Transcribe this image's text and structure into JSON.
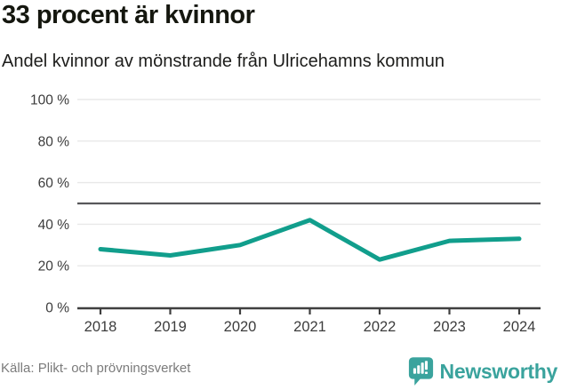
{
  "chart_data": {
    "type": "line",
    "title": "33 procent är kvinnor",
    "subtitle": "Andel kvinnor av mönstrande från Ulricehamns kommun",
    "categories": [
      "2018",
      "2019",
      "2020",
      "2021",
      "2022",
      "2023",
      "2024"
    ],
    "series": [
      {
        "name": "Andel kvinnor av mönstrande",
        "values": [
          28,
          25,
          30,
          42,
          23,
          32,
          33
        ]
      }
    ],
    "xlabel": "",
    "ylabel": "",
    "ylim": [
      0,
      100
    ],
    "yticks": [
      0,
      20,
      40,
      60,
      80,
      100
    ],
    "ytick_suffix": " %",
    "reference_line": 50,
    "grid": true,
    "legend": "none"
  },
  "footer": {
    "source": "Källa: Plikt- och prövningsverket",
    "brand": "Newsworthy"
  },
  "colors": {
    "line": "#119e8c",
    "grid": "#e8e8e8",
    "reference": "#58585a",
    "axis": "#3f3f3f",
    "tick_text": "#3c3c3c",
    "muted_text": "#7b7b7b",
    "brand_teal": "#3aa39d"
  }
}
